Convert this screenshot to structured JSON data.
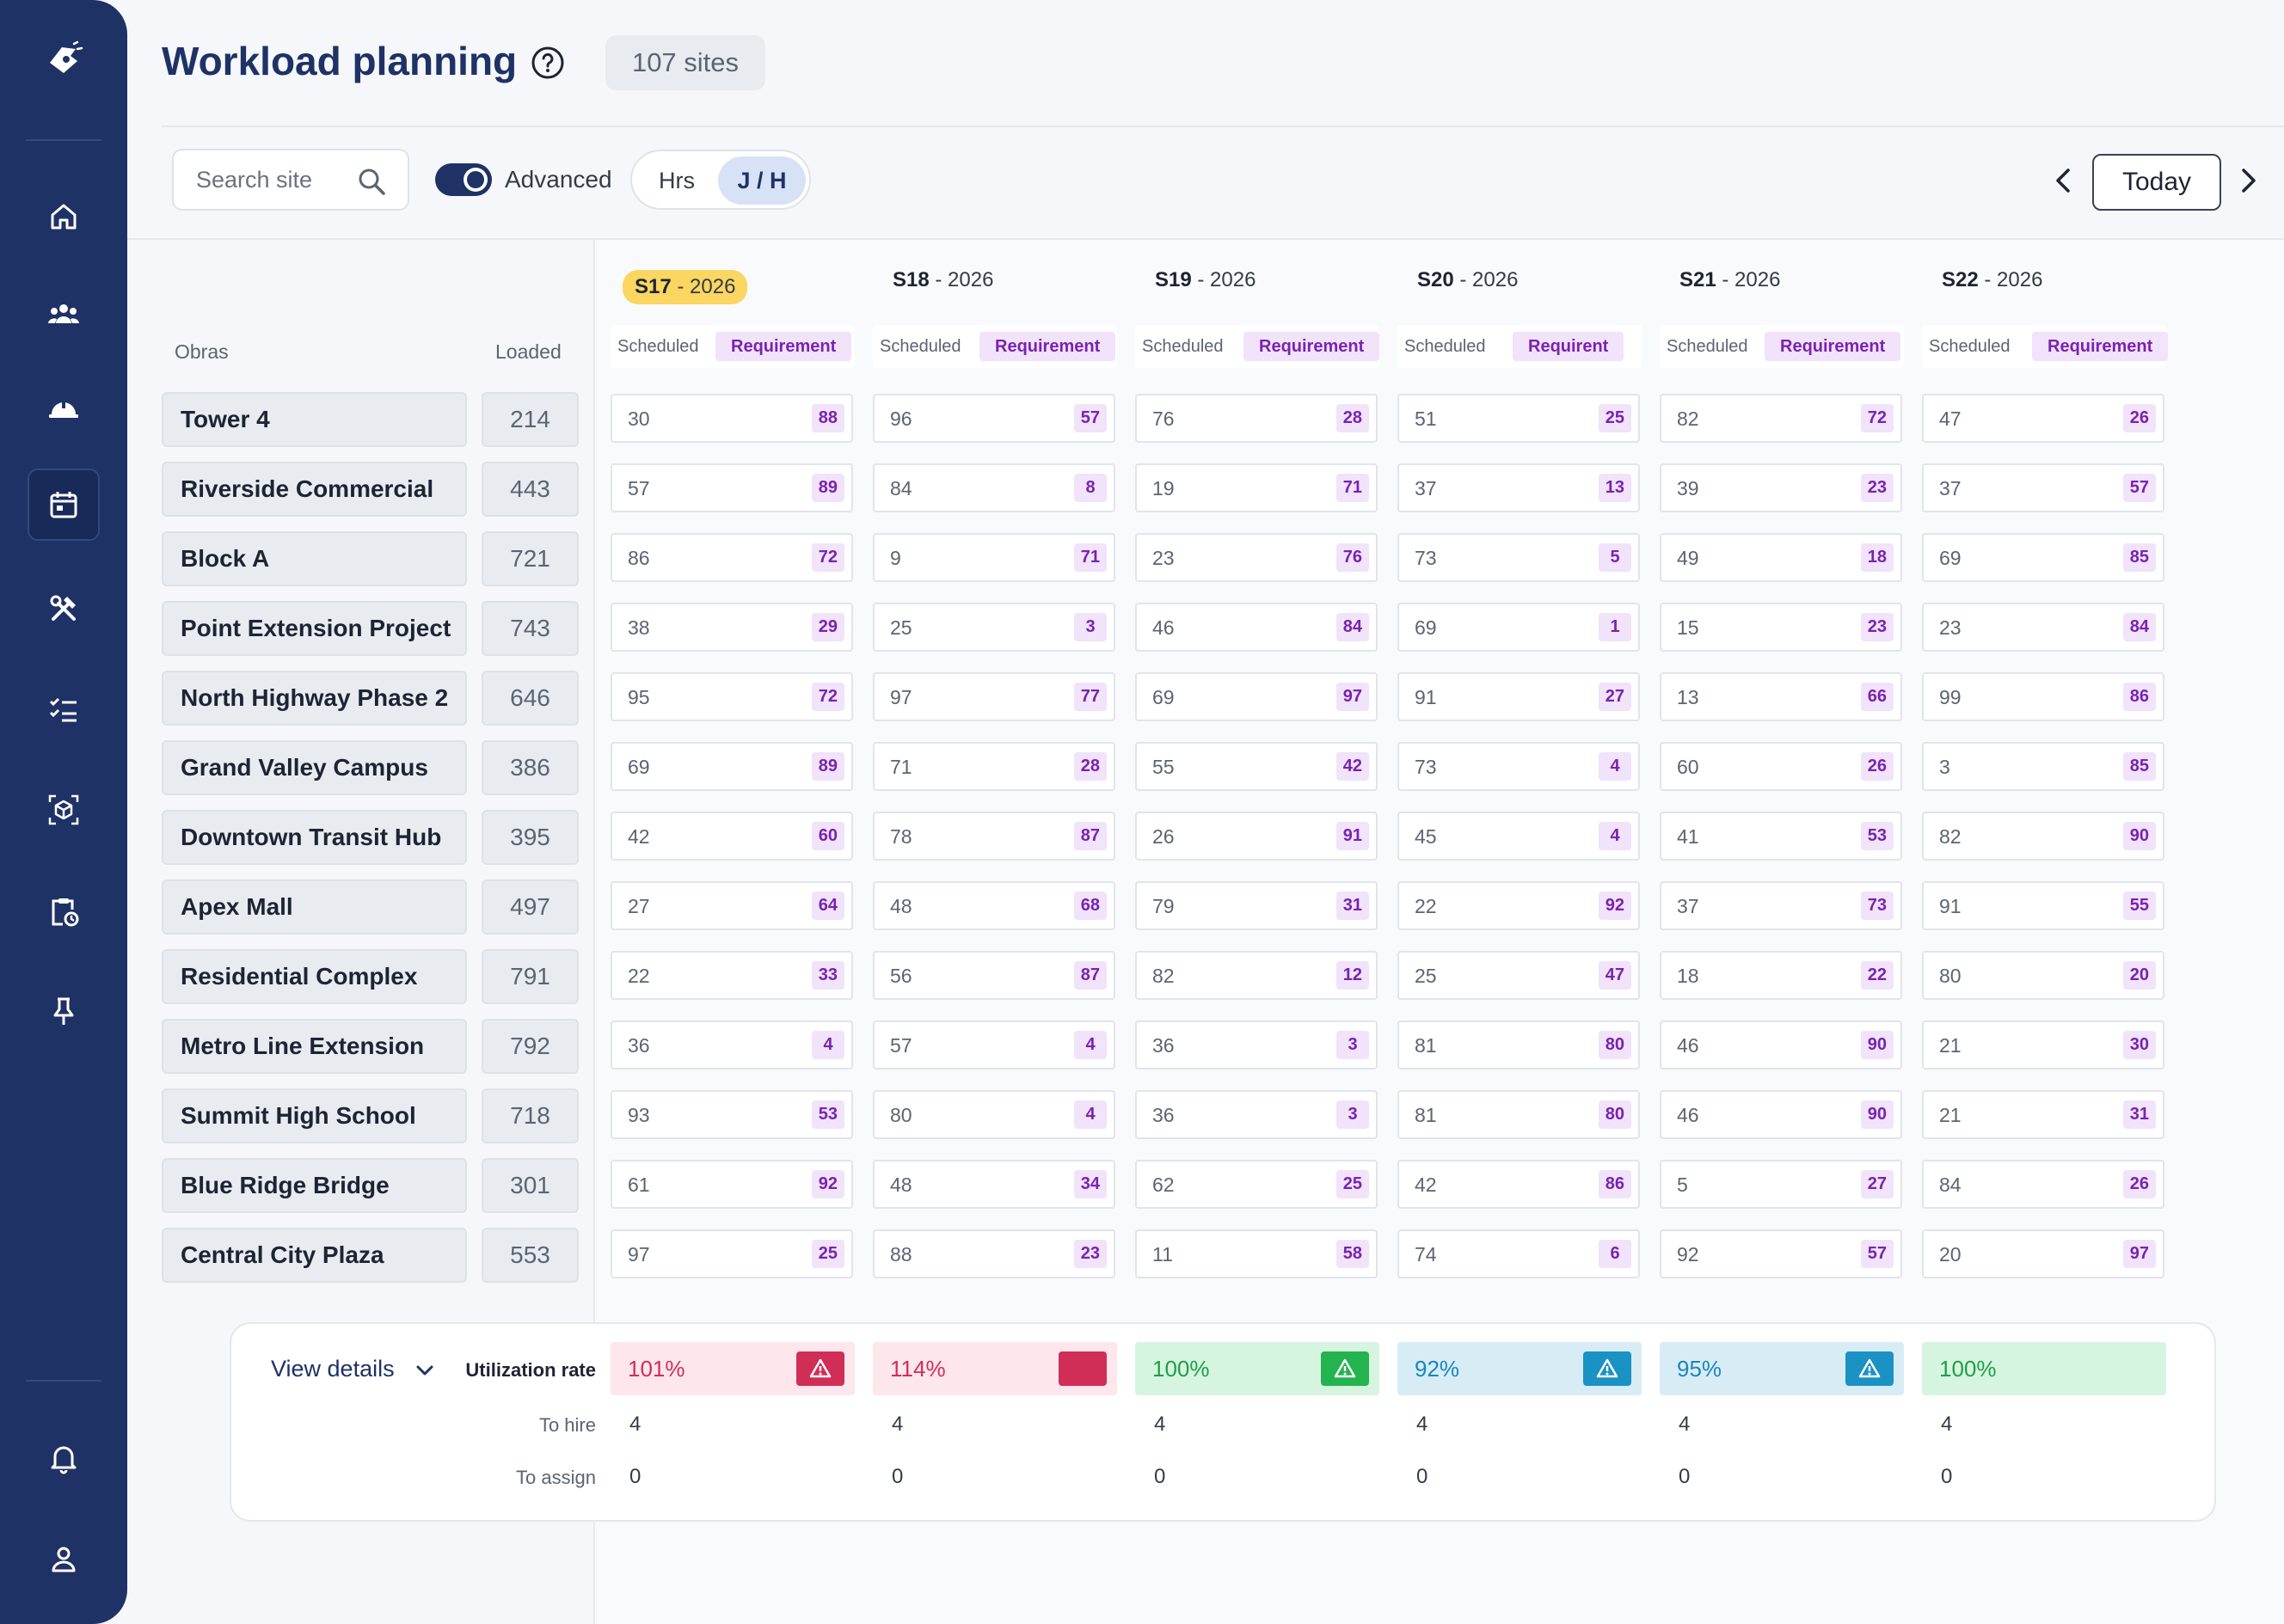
{
  "header": {
    "title": "Workload planning",
    "sites_count": "107 sites"
  },
  "toolbar": {
    "search_placeholder": "Search site",
    "advanced_label": "Advanced",
    "unit_hrs": "Hrs",
    "unit_jh": "J / H",
    "today_label": "Today"
  },
  "columns": {
    "obras": "Obras",
    "loaded": "Loaded",
    "scheduled": "Scheduled",
    "requirement": "Requirement",
    "requirement_short": "Requirent"
  },
  "weeks": [
    {
      "week": "S17",
      "year": "2026"
    },
    {
      "week": "S18",
      "year": "2026"
    },
    {
      "week": "S19",
      "year": "2026"
    },
    {
      "week": "S20",
      "year": "2026"
    },
    {
      "week": "S21",
      "year": "2026"
    },
    {
      "week": "S22",
      "year": "2026"
    }
  ],
  "sites": [
    {
      "name": "Tower 4",
      "loaded": "214",
      "cells": [
        [
          "30",
          "88"
        ],
        [
          "96",
          "57"
        ],
        [
          "76",
          "28"
        ],
        [
          "51",
          "25"
        ],
        [
          "82",
          "72"
        ],
        [
          "47",
          "26"
        ]
      ]
    },
    {
      "name": "Riverside Commercial",
      "loaded": "443",
      "cells": [
        [
          "57",
          "89"
        ],
        [
          "84",
          "8"
        ],
        [
          "19",
          "71"
        ],
        [
          "37",
          "13"
        ],
        [
          "39",
          "23"
        ],
        [
          "37",
          "57"
        ]
      ]
    },
    {
      "name": "Block A",
      "loaded": "721",
      "cells": [
        [
          "86",
          "72"
        ],
        [
          "9",
          "71"
        ],
        [
          "23",
          "76"
        ],
        [
          "73",
          "5"
        ],
        [
          "49",
          "18"
        ],
        [
          "69",
          "85"
        ]
      ]
    },
    {
      "name": "Point Extension Project",
      "loaded": "743",
      "cells": [
        [
          "38",
          "29"
        ],
        [
          "25",
          "3"
        ],
        [
          "46",
          "84"
        ],
        [
          "69",
          "1"
        ],
        [
          "15",
          "23"
        ],
        [
          "23",
          "84"
        ]
      ]
    },
    {
      "name": "North Highway Phase 2",
      "loaded": "646",
      "cells": [
        [
          "95",
          "72"
        ],
        [
          "97",
          "77"
        ],
        [
          "69",
          "97"
        ],
        [
          "91",
          "27"
        ],
        [
          "13",
          "66"
        ],
        [
          "99",
          "86"
        ]
      ]
    },
    {
      "name": "Grand Valley Campus",
      "loaded": "386",
      "cells": [
        [
          "69",
          "89"
        ],
        [
          "71",
          "28"
        ],
        [
          "55",
          "42"
        ],
        [
          "73",
          "4"
        ],
        [
          "60",
          "26"
        ],
        [
          "3",
          "85"
        ]
      ]
    },
    {
      "name": "Downtown Transit Hub",
      "loaded": "395",
      "cells": [
        [
          "42",
          "60"
        ],
        [
          "78",
          "87"
        ],
        [
          "26",
          "91"
        ],
        [
          "45",
          "4"
        ],
        [
          "41",
          "53"
        ],
        [
          "82",
          "90"
        ]
      ]
    },
    {
      "name": "Apex Mall",
      "loaded": "497",
      "cells": [
        [
          "27",
          "64"
        ],
        [
          "48",
          "68"
        ],
        [
          "79",
          "31"
        ],
        [
          "22",
          "92"
        ],
        [
          "37",
          "73"
        ],
        [
          "91",
          "55"
        ]
      ]
    },
    {
      "name": "Residential Complex",
      "loaded": "791",
      "cells": [
        [
          "22",
          "33"
        ],
        [
          "56",
          "87"
        ],
        [
          "82",
          "12"
        ],
        [
          "25",
          "47"
        ],
        [
          "18",
          "22"
        ],
        [
          "80",
          "20"
        ]
      ]
    },
    {
      "name": "Metro Line Extension",
      "loaded": "792",
      "cells": [
        [
          "36",
          "4"
        ],
        [
          "57",
          "4"
        ],
        [
          "36",
          "3"
        ],
        [
          "81",
          "80"
        ],
        [
          "46",
          "90"
        ],
        [
          "21",
          "30"
        ]
      ]
    },
    {
      "name": "Summit High School",
      "loaded": "718",
      "cells": [
        [
          "93",
          "53"
        ],
        [
          "80",
          "4"
        ],
        [
          "36",
          "3"
        ],
        [
          "81",
          "80"
        ],
        [
          "46",
          "90"
        ],
        [
          "21",
          "31"
        ]
      ]
    },
    {
      "name": "Blue Ridge Bridge",
      "loaded": "301",
      "cells": [
        [
          "61",
          "92"
        ],
        [
          "48",
          "34"
        ],
        [
          "62",
          "25"
        ],
        [
          "42",
          "86"
        ],
        [
          "5",
          "27"
        ],
        [
          "84",
          "26"
        ]
      ]
    },
    {
      "name": "Central City Plaza",
      "loaded": "553",
      "cells": [
        [
          "97",
          "25"
        ],
        [
          "88",
          "23"
        ],
        [
          "11",
          "58"
        ],
        [
          "74",
          "6"
        ],
        [
          "92",
          "57"
        ],
        [
          "20",
          "97"
        ]
      ]
    }
  ],
  "summary": {
    "view_details": "View details",
    "utilization_label": "Utilization rate",
    "to_hire_label": "To hire",
    "to_assign_label": "To assign",
    "utilization": [
      {
        "value": "101%",
        "status": "danger",
        "bg": "#fde6ec",
        "fg": "#d12e57",
        "alert": "warning-icon"
      },
      {
        "value": "114%",
        "status": "danger",
        "bg": "#fde6ec",
        "fg": "#d12e57",
        "alert": "none"
      },
      {
        "value": "100%",
        "status": "ok",
        "bg": "#d6f5e0",
        "fg": "#1f9e48",
        "alert": "warning-icon"
      },
      {
        "value": "92%",
        "status": "info",
        "bg": "#d8ecf6",
        "fg": "#1a86b8",
        "alert": "warning-icon"
      },
      {
        "value": "95%",
        "status": "info",
        "bg": "#d8ecf6",
        "fg": "#1a86b8",
        "alert": "warning-icon"
      },
      {
        "value": "100%",
        "status": "ok",
        "bg": "#d6f5e0",
        "fg": "#1f9e48",
        "alert": "hidden"
      }
    ],
    "to_hire": [
      "4",
      "4",
      "4",
      "4",
      "4",
      "4"
    ],
    "to_assign": [
      "0",
      "0",
      "0",
      "0",
      "0",
      "0"
    ]
  },
  "colors": {
    "sidebar": "#1f3266",
    "accent": "#1f3266",
    "requirement_bg": "#f1e3fa",
    "requirement_fg": "#7a22b0",
    "current_week": "#fbd661"
  }
}
